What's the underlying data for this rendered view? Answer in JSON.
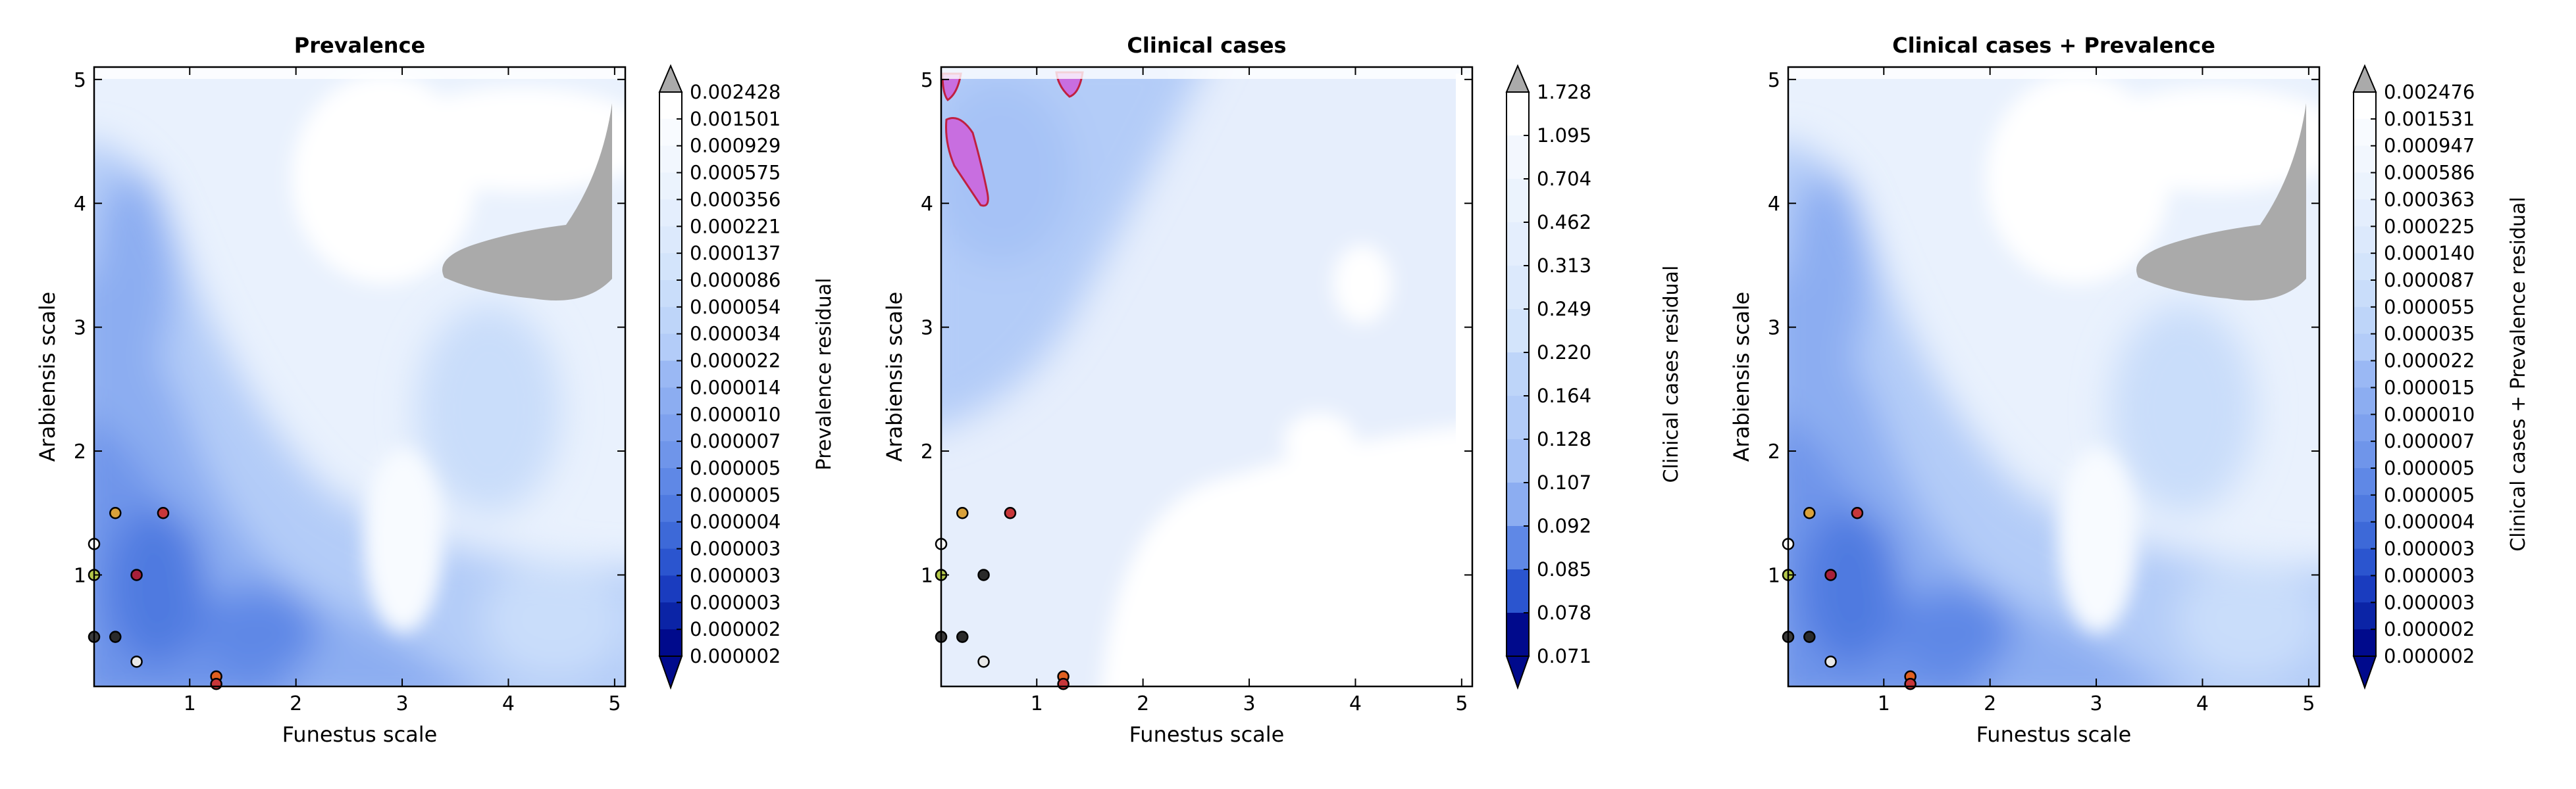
{
  "chart_data": [
    {
      "type": "heatmap",
      "title": "Prevalence",
      "xlabel": "Funestus scale",
      "ylabel": "Arabiensis scale",
      "xlim": [
        0.1,
        5.1
      ],
      "ylim": [
        0.1,
        5.1
      ],
      "xticks": [
        "1",
        "2",
        "3",
        "4",
        "5"
      ],
      "yticks": [
        "1",
        "2",
        "3",
        "4",
        "5"
      ],
      "colorbar_label": "Prevalence residual",
      "colorbar_ticks": [
        "0.002428",
        "0.001501",
        "0.000929",
        "0.000575",
        "0.000356",
        "0.000221",
        "0.000137",
        "0.000086",
        "0.000054",
        "0.000034",
        "0.000022",
        "0.000014",
        "0.000010",
        "0.000007",
        "0.000005",
        "0.000005",
        "0.000004",
        "0.000003",
        "0.000003",
        "0.000003",
        "0.000002",
        "0.000002"
      ],
      "colorscale": "blues",
      "grey_region": true,
      "grey_region_color": "#aaaaaa",
      "points": [
        {
          "x": 0.3,
          "y": 1.5,
          "color": "#d9a13a"
        },
        {
          "x": 0.75,
          "y": 1.5,
          "color": "#c8373a"
        },
        {
          "x": 0.1,
          "y": 1.0,
          "color": "#b5c94a"
        },
        {
          "x": 0.5,
          "y": 1.0,
          "color": "#a8203a"
        },
        {
          "x": 0.3,
          "y": 0.5,
          "color": "#2a2a2a"
        },
        {
          "x": 0.1,
          "y": 0.5,
          "color": "#3a3a3a"
        },
        {
          "x": 0.5,
          "y": 0.3,
          "color": "#e8e8e8"
        },
        {
          "x": 1.25,
          "y": 0.18,
          "color": "#e06020"
        },
        {
          "x": 1.25,
          "y": 0.12,
          "color": "#c8373a"
        },
        {
          "x": 0.1,
          "y": 1.25,
          "color": "#ffffff"
        }
      ]
    },
    {
      "type": "heatmap",
      "title": "Clinical cases",
      "xlabel": "Funestus scale",
      "ylabel": "Arabiensis scale",
      "xlim": [
        0.1,
        5.1
      ],
      "ylim": [
        0.1,
        5.1
      ],
      "xticks": [
        "1",
        "2",
        "3",
        "4",
        "5"
      ],
      "yticks": [
        "1",
        "2",
        "3",
        "4",
        "5"
      ],
      "colorbar_label": "Clinical cases residual",
      "colorbar_ticks": [
        "1.728",
        "1.095",
        "0.704",
        "0.462",
        "0.313",
        "0.249",
        "0.220",
        "0.164",
        "0.128",
        "0.107",
        "0.092",
        "0.085",
        "0.078",
        "0.071"
      ],
      "colorscale": "blues-light",
      "grey_region": false,
      "highlight_color": "#c86ee0",
      "points": [
        {
          "x": 0.3,
          "y": 1.5,
          "color": "#d9a13a"
        },
        {
          "x": 0.75,
          "y": 1.5,
          "color": "#c8373a"
        },
        {
          "x": 0.1,
          "y": 1.0,
          "color": "#b5c94a"
        },
        {
          "x": 0.5,
          "y": 1.0,
          "color": "#2a2a2a"
        },
        {
          "x": 0.3,
          "y": 0.5,
          "color": "#2a2a2a"
        },
        {
          "x": 0.1,
          "y": 0.5,
          "color": "#3a3a3a"
        },
        {
          "x": 0.5,
          "y": 0.3,
          "color": "#e8e8e8"
        },
        {
          "x": 1.25,
          "y": 0.18,
          "color": "#e06020"
        },
        {
          "x": 1.25,
          "y": 0.12,
          "color": "#c8373a"
        },
        {
          "x": 0.1,
          "y": 1.25,
          "color": "#ffffff"
        }
      ]
    },
    {
      "type": "heatmap",
      "title": "Clinical cases + Prevalence",
      "xlabel": "Funestus scale",
      "ylabel": "Arabiensis scale",
      "xlim": [
        0.1,
        5.1
      ],
      "ylim": [
        0.1,
        5.1
      ],
      "xticks": [
        "1",
        "2",
        "3",
        "4",
        "5"
      ],
      "yticks": [
        "1",
        "2",
        "3",
        "4",
        "5"
      ],
      "colorbar_label": "Clinical cases + Prevalence residual",
      "colorbar_ticks": [
        "0.002476",
        "0.001531",
        "0.000947",
        "0.000586",
        "0.000363",
        "0.000225",
        "0.000140",
        "0.000087",
        "0.000055",
        "0.000035",
        "0.000022",
        "0.000015",
        "0.000010",
        "0.000007",
        "0.000005",
        "0.000005",
        "0.000004",
        "0.000003",
        "0.000003",
        "0.000003",
        "0.000002",
        "0.000002"
      ],
      "colorscale": "blues",
      "grey_region": true,
      "grey_region_color": "#aaaaaa",
      "points": [
        {
          "x": 0.3,
          "y": 1.5,
          "color": "#d9a13a"
        },
        {
          "x": 0.75,
          "y": 1.5,
          "color": "#c8373a"
        },
        {
          "x": 0.1,
          "y": 1.0,
          "color": "#b5c94a"
        },
        {
          "x": 0.5,
          "y": 1.0,
          "color": "#a8203a"
        },
        {
          "x": 0.3,
          "y": 0.5,
          "color": "#2a2a2a"
        },
        {
          "x": 0.1,
          "y": 0.5,
          "color": "#3a3a3a"
        },
        {
          "x": 0.5,
          "y": 0.3,
          "color": "#e8e8e8"
        },
        {
          "x": 1.25,
          "y": 0.18,
          "color": "#e06020"
        },
        {
          "x": 1.25,
          "y": 0.12,
          "color": "#c8373a"
        },
        {
          "x": 0.1,
          "y": 1.25,
          "color": "#ffffff"
        }
      ]
    }
  ]
}
